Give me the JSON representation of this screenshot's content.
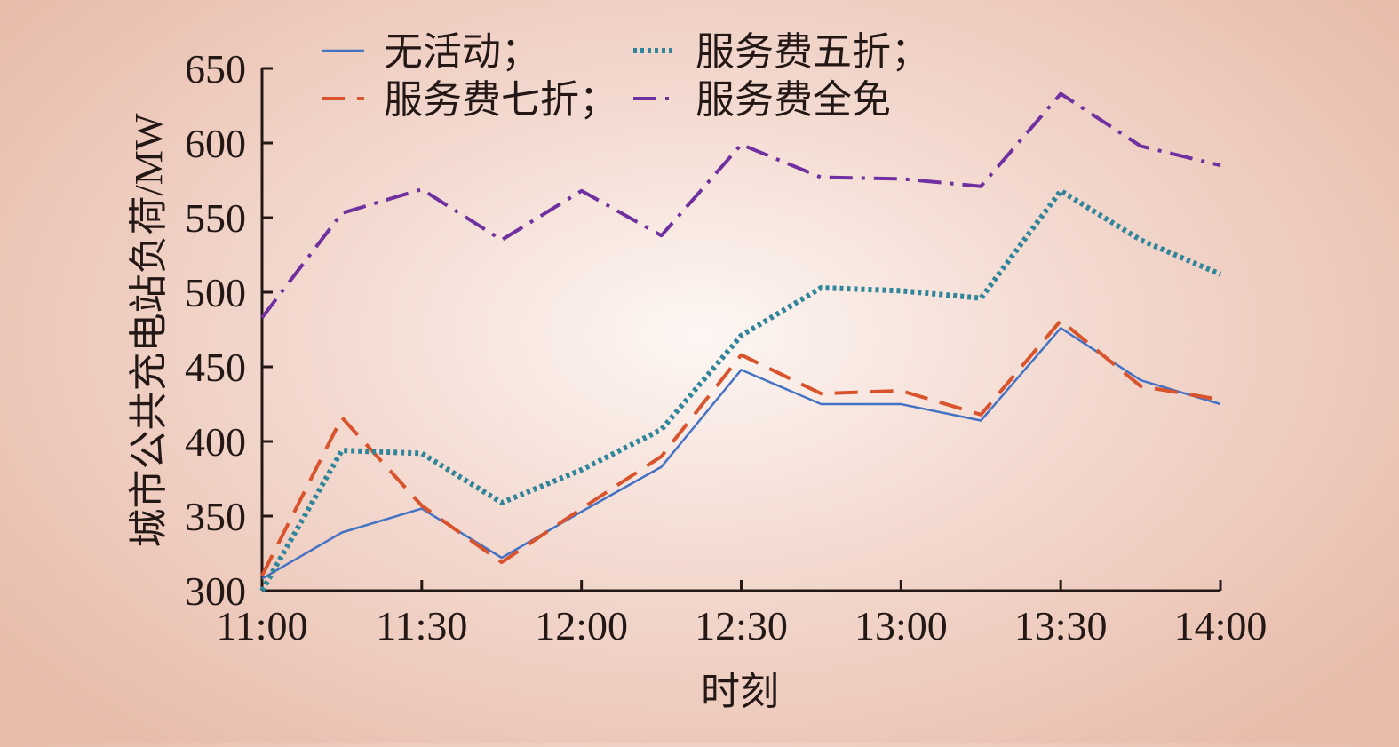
{
  "chart_data": {
    "type": "line",
    "title": "",
    "xlabel": "时刻",
    "ylabel": "城市公共充电站负荷/MW",
    "ylim": [
      300,
      650
    ],
    "yticks": [
      "300",
      "350",
      "400",
      "450",
      "500",
      "550",
      "600",
      "650"
    ],
    "xlim": [
      "11:00",
      "14:00"
    ],
    "xticks": [
      "11:00",
      "11:30",
      "12:00",
      "12:30",
      "13:00",
      "13:30",
      "14:00"
    ],
    "x": [
      "11:00",
      "11:15",
      "11:30",
      "11:45",
      "12:00",
      "12:15",
      "12:30",
      "12:45",
      "13:00",
      "13:15",
      "13:30",
      "13:45",
      "14:00"
    ],
    "grid": false,
    "legend_position": "top",
    "series": [
      {
        "name": "无活动；",
        "color": "#4472c4",
        "style": "solid",
        "values": [
          308,
          339,
          355,
          322,
          353,
          383,
          448,
          425,
          425,
          414,
          476,
          441,
          425
        ]
      },
      {
        "name": "服务费七折；",
        "color": "#d9542c",
        "style": "dashed",
        "values": [
          310,
          416,
          357,
          319,
          355,
          390,
          458,
          432,
          434,
          418,
          481,
          437,
          428
        ]
      },
      {
        "name": "服务费五折；",
        "color": "#31859b",
        "style": "dotted",
        "values": [
          300,
          394,
          392,
          359,
          381,
          408,
          471,
          503,
          501,
          496,
          568,
          535,
          512
        ]
      },
      {
        "name": "服务费全免",
        "color": "#7030a0",
        "style": "dashdot",
        "values": [
          483,
          553,
          569,
          535,
          568,
          538,
          599,
          577,
          576,
          571,
          633,
          598,
          585
        ]
      }
    ]
  }
}
